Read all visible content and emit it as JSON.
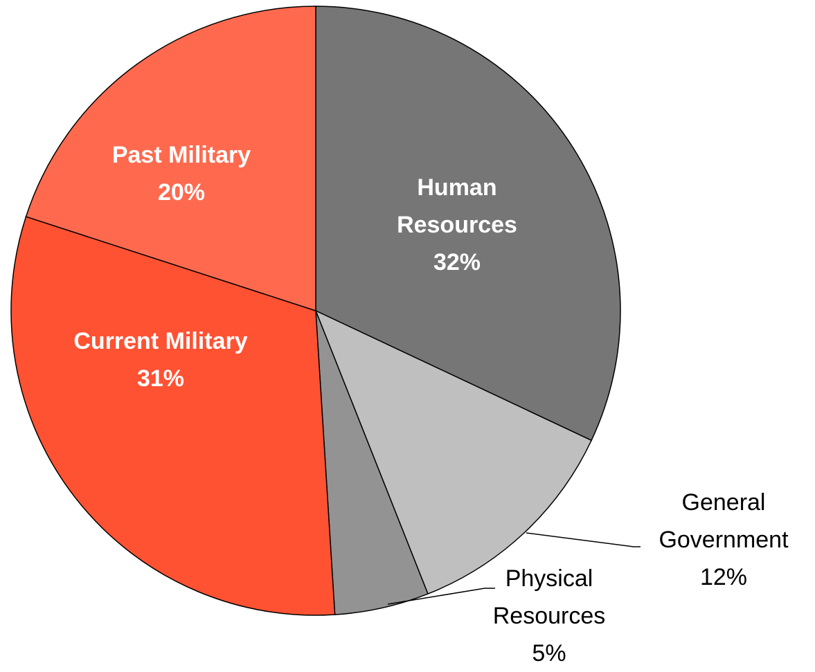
{
  "chart_data": {
    "type": "pie",
    "categories": [
      "Human Resources",
      "General Government",
      "Physical Resources",
      "Current Military",
      "Past Military"
    ],
    "values": [
      32,
      12,
      5,
      31,
      20
    ],
    "value_labels": [
      "32%",
      "12%",
      "5%",
      "31%",
      "20%"
    ],
    "colors": [
      "#767676",
      "#bfbfbf",
      "#939393",
      "#ff5233",
      "#ff6a4f"
    ]
  }
}
